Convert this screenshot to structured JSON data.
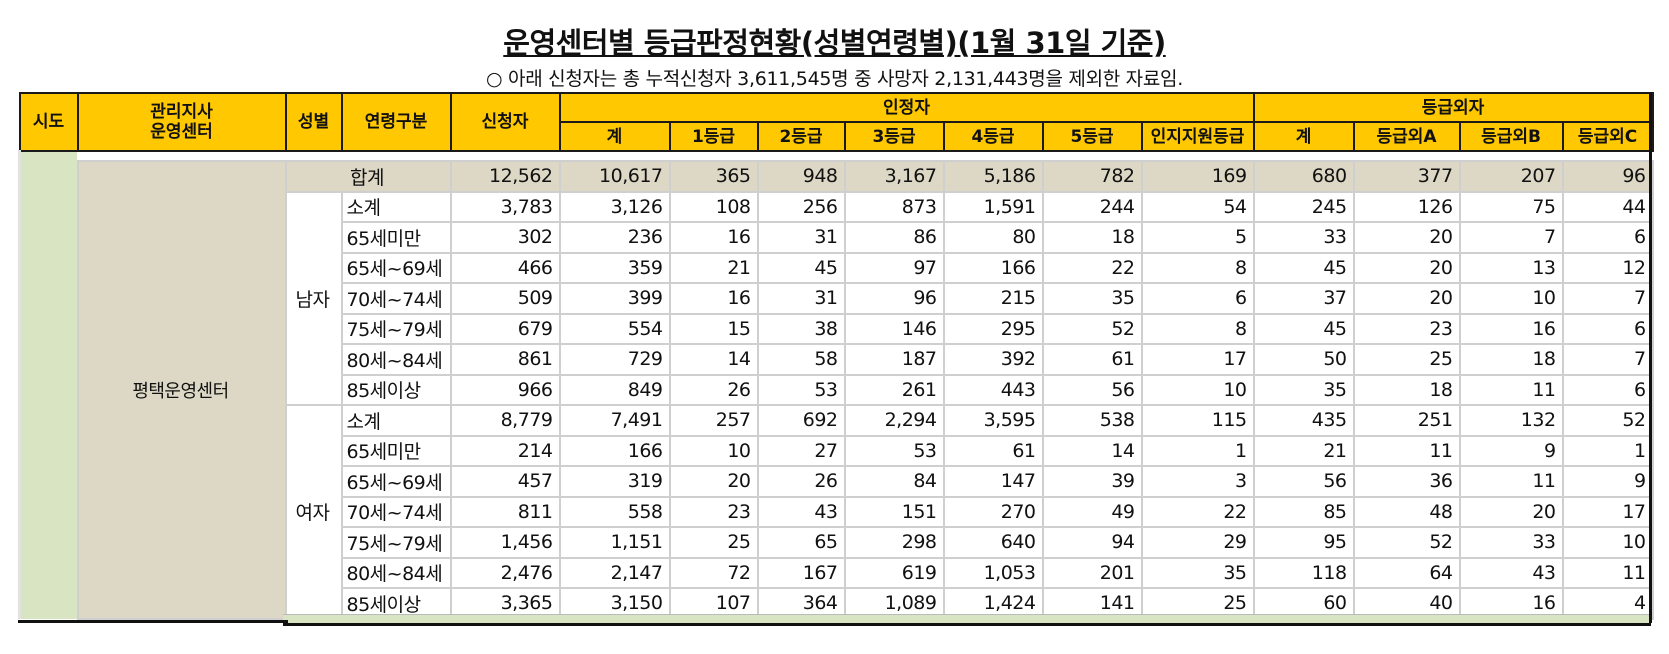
{
  "title": "운영센터별 등급판정현황(성별연령별)(1월 31일 기준)",
  "subtitle": "○ 아래 신청자는 총 누적신청자 3,611,545명 중 사망자 2,131,443명을 제외한 자료임.",
  "header": {
    "sido": "시도",
    "branch_line1": "관리지사",
    "branch_line2": "운영센터",
    "sex": "성별",
    "age_group": "연령구분",
    "applicants": "신청자",
    "certified_group": "인정자",
    "non_grade_group": "등급외자",
    "certified_cols": [
      "계",
      "1등급",
      "2등급",
      "3등급",
      "4등급",
      "5등급",
      "인지지원등급"
    ],
    "non_grade_cols": [
      "계",
      "등급외A",
      "등급외B",
      "등급외C"
    ]
  },
  "center_name": "평택운영센터",
  "colors": {
    "header_bg": "#ffc800",
    "total_row_bg": "#ddd8c5",
    "sido_col_bg": "#d9e5c2"
  },
  "total": {
    "label": "합계",
    "values": [
      "12,562",
      "10,617",
      "365",
      "948",
      "3,167",
      "5,186",
      "782",
      "169",
      "680",
      "377",
      "207",
      "96"
    ]
  },
  "groups": [
    {
      "sex": "남자",
      "rows": [
        {
          "age": "소계",
          "values": [
            "3,783",
            "3,126",
            "108",
            "256",
            "873",
            "1,591",
            "244",
            "54",
            "245",
            "126",
            "75",
            "44"
          ]
        },
        {
          "age": "65세미만",
          "values": [
            "302",
            "236",
            "16",
            "31",
            "86",
            "80",
            "18",
            "5",
            "33",
            "20",
            "7",
            "6"
          ]
        },
        {
          "age": "65세~69세",
          "values": [
            "466",
            "359",
            "21",
            "45",
            "97",
            "166",
            "22",
            "8",
            "45",
            "20",
            "13",
            "12"
          ]
        },
        {
          "age": "70세~74세",
          "values": [
            "509",
            "399",
            "16",
            "31",
            "96",
            "215",
            "35",
            "6",
            "37",
            "20",
            "10",
            "7"
          ]
        },
        {
          "age": "75세~79세",
          "values": [
            "679",
            "554",
            "15",
            "38",
            "146",
            "295",
            "52",
            "8",
            "45",
            "23",
            "16",
            "6"
          ]
        },
        {
          "age": "80세~84세",
          "values": [
            "861",
            "729",
            "14",
            "58",
            "187",
            "392",
            "61",
            "17",
            "50",
            "25",
            "18",
            "7"
          ]
        },
        {
          "age": "85세이상",
          "values": [
            "966",
            "849",
            "26",
            "53",
            "261",
            "443",
            "56",
            "10",
            "35",
            "18",
            "11",
            "6"
          ]
        }
      ]
    },
    {
      "sex": "여자",
      "rows": [
        {
          "age": "소계",
          "values": [
            "8,779",
            "7,491",
            "257",
            "692",
            "2,294",
            "3,595",
            "538",
            "115",
            "435",
            "251",
            "132",
            "52"
          ]
        },
        {
          "age": "65세미만",
          "values": [
            "214",
            "166",
            "10",
            "27",
            "53",
            "61",
            "14",
            "1",
            "21",
            "11",
            "9",
            "1"
          ]
        },
        {
          "age": "65세~69세",
          "values": [
            "457",
            "319",
            "20",
            "26",
            "84",
            "147",
            "39",
            "3",
            "56",
            "36",
            "11",
            "9"
          ]
        },
        {
          "age": "70세~74세",
          "values": [
            "811",
            "558",
            "23",
            "43",
            "151",
            "270",
            "49",
            "22",
            "85",
            "48",
            "20",
            "17"
          ]
        },
        {
          "age": "75세~79세",
          "values": [
            "1,456",
            "1,151",
            "25",
            "65",
            "298",
            "640",
            "94",
            "29",
            "95",
            "52",
            "33",
            "10"
          ]
        },
        {
          "age": "80세~84세",
          "values": [
            "2,476",
            "2,147",
            "72",
            "167",
            "619",
            "1,053",
            "201",
            "35",
            "118",
            "64",
            "43",
            "11"
          ]
        },
        {
          "age": "85세이상",
          "values": [
            "3,365",
            "3,150",
            "107",
            "364",
            "1,089",
            "1,424",
            "141",
            "25",
            "60",
            "40",
            "16",
            "4"
          ]
        }
      ]
    }
  ]
}
